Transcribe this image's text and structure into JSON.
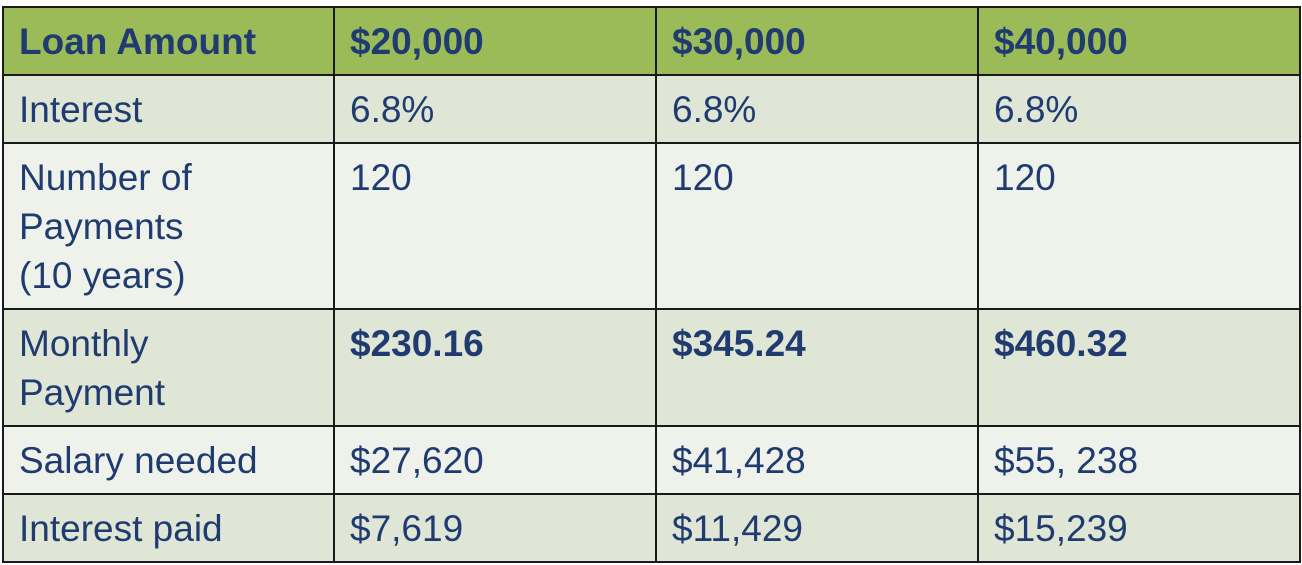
{
  "table": {
    "header": [
      "Loan Amount",
      "$20,000",
      "$30,000",
      "$40,000"
    ],
    "rows": [
      {
        "label": [
          "Interest"
        ],
        "values": [
          "6.8%",
          "6.8%",
          "6.8%"
        ]
      },
      {
        "label": [
          "Number of",
          "Payments",
          "(10 years)"
        ],
        "values": [
          "120",
          "120",
          "120"
        ]
      },
      {
        "label": [
          "Monthly",
          "Payment"
        ],
        "values": [
          "$230.16",
          "$345.24",
          "$460.32"
        ]
      },
      {
        "label": [
          "Salary needed"
        ],
        "values": [
          "$27,620",
          "$41,428",
          "$55, 238"
        ]
      },
      {
        "label": [
          "Interest paid"
        ],
        "values": [
          "$7,619",
          "$11,429",
          "$15,239"
        ]
      }
    ]
  },
  "colors": {
    "header_bg": "#9bbb59",
    "band_dark": "#dfe6d6",
    "band_light": "#eef2ea",
    "text": "#1f3b6f"
  }
}
